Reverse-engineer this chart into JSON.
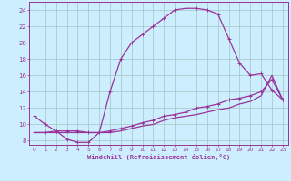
{
  "xlabel": "Windchill (Refroidissement éolien,°C)",
  "bg_color": "#cceeff",
  "grid_color": "#aacccc",
  "line_color": "#993399",
  "xlim": [
    -0.5,
    23.5
  ],
  "ylim": [
    7.5,
    25.0
  ],
  "xticks": [
    0,
    1,
    2,
    3,
    4,
    5,
    6,
    7,
    8,
    9,
    10,
    11,
    12,
    13,
    14,
    15,
    16,
    17,
    18,
    19,
    20,
    21,
    22,
    23
  ],
  "yticks": [
    8,
    10,
    12,
    14,
    16,
    18,
    20,
    22,
    24
  ],
  "curve1_x": [
    0,
    1,
    2,
    3,
    4,
    5,
    6,
    7,
    8,
    9,
    10,
    11,
    12,
    13,
    14,
    15,
    16,
    17,
    18,
    19,
    20,
    21,
    22,
    23
  ],
  "curve1_y": [
    11.0,
    10.0,
    9.2,
    8.2,
    7.8,
    7.8,
    9.0,
    14.0,
    18.0,
    20.0,
    21.0,
    22.0,
    23.0,
    24.0,
    24.2,
    24.2,
    24.0,
    23.5,
    20.5,
    17.5,
    16.0,
    16.2,
    14.2,
    13.0
  ],
  "curve2_x": [
    0,
    1,
    2,
    3,
    4,
    5,
    6,
    7,
    8,
    9,
    10,
    11,
    12,
    13,
    14,
    15,
    16,
    17,
    18,
    19,
    20,
    21,
    22,
    23
  ],
  "curve2_y": [
    9.0,
    9.0,
    9.2,
    9.2,
    9.2,
    9.0,
    9.0,
    9.2,
    9.5,
    9.8,
    10.2,
    10.5,
    11.0,
    11.2,
    11.5,
    12.0,
    12.2,
    12.5,
    13.0,
    13.2,
    13.5,
    14.0,
    15.5,
    13.0
  ],
  "curve3_x": [
    0,
    1,
    2,
    3,
    4,
    5,
    6,
    7,
    8,
    9,
    10,
    11,
    12,
    13,
    14,
    15,
    16,
    17,
    18,
    19,
    20,
    21,
    22,
    23
  ],
  "curve3_y": [
    9.0,
    9.0,
    9.0,
    9.0,
    9.0,
    9.0,
    9.0,
    9.0,
    9.2,
    9.5,
    9.8,
    10.0,
    10.5,
    10.8,
    11.0,
    11.2,
    11.5,
    11.8,
    12.0,
    12.5,
    12.8,
    13.5,
    16.0,
    13.0
  ]
}
